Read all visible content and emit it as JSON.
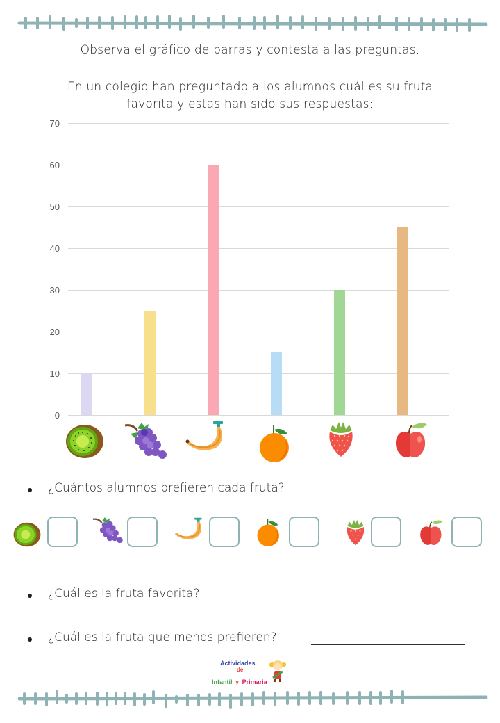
{
  "instructions": {
    "line1": "Observa el gráfico de barras y contesta a las preguntas.",
    "line2a": "En un colegio han preguntado a los alumnos cuál es su fruta",
    "line2b": "favorita y estas han sido sus respuestas:"
  },
  "chart_data": {
    "type": "bar",
    "title": "",
    "xlabel": "",
    "ylabel": "",
    "categories": [
      "Kiwi",
      "Uvas",
      "Plátano",
      "Naranja",
      "Fresa",
      "Manzana"
    ],
    "category_icons": [
      "kiwi-icon",
      "grapes-icon",
      "banana-icon",
      "orange-icon",
      "strawberry-icon",
      "apple-icon"
    ],
    "values": [
      10,
      25,
      60,
      15,
      30,
      45
    ],
    "colors": [
      "#dcd8f2",
      "#f8df8b",
      "#f9a8b4",
      "#b6dcf6",
      "#a0d795",
      "#e8b883"
    ],
    "ylim": [
      0,
      70
    ],
    "yticks": [
      "0",
      "10",
      "20",
      "30",
      "40",
      "50",
      "60",
      "70"
    ],
    "grid": true,
    "legend": "none"
  },
  "questions": {
    "q1": "¿Cuántos alumnos prefieren cada fruta?",
    "q2": "¿Cuál es la fruta favorita?",
    "q3": "¿Cuál es la fruta que menos prefieren?",
    "answer_boxes": [
      {
        "fruit": "kiwi-icon",
        "value": ""
      },
      {
        "fruit": "grapes-icon",
        "value": ""
      },
      {
        "fruit": "banana-icon",
        "value": ""
      },
      {
        "fruit": "orange-icon",
        "value": ""
      },
      {
        "fruit": "strawberry-icon",
        "value": ""
      },
      {
        "fruit": "apple-icon",
        "value": ""
      }
    ]
  },
  "logo": {
    "line1": "Actividades",
    "line2": "de",
    "line3a": "Infantil",
    "line3b": "y",
    "line3c": "Primaria"
  },
  "colors": {
    "border": "#8fb3b5",
    "box_border": "#8fb3b5",
    "gridline": "#d9d9d9",
    "axis_text": "#595959"
  }
}
